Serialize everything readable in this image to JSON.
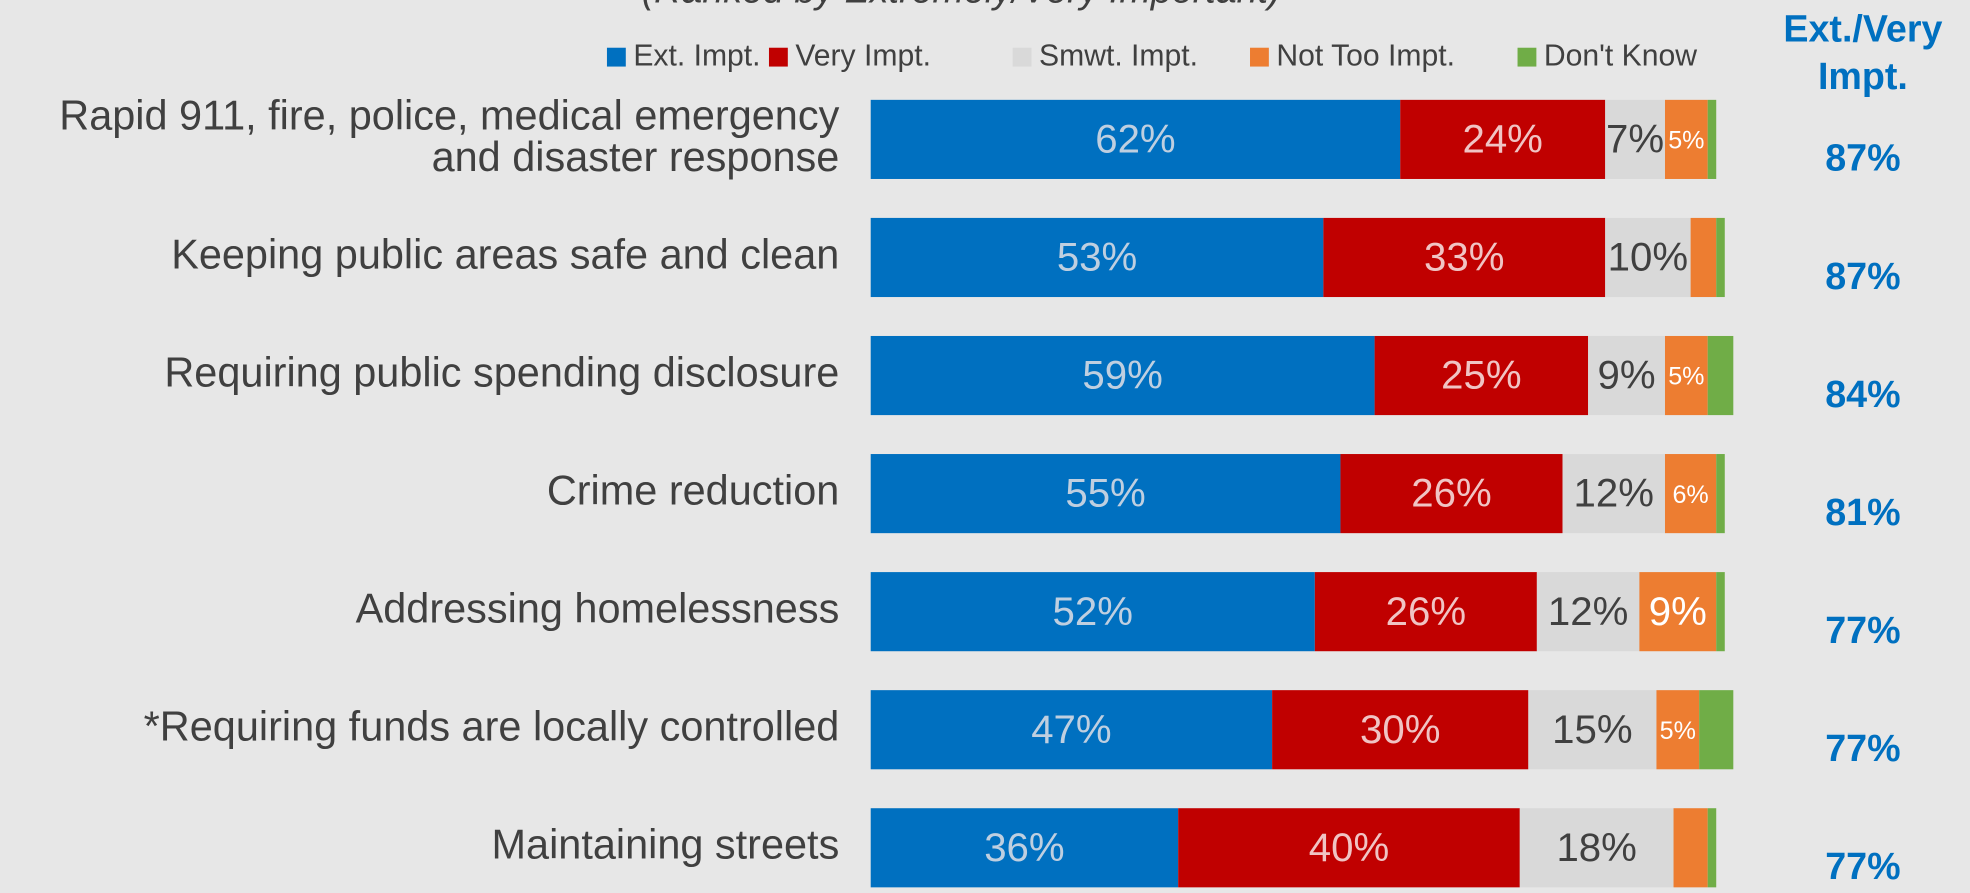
{
  "chart_data": {
    "type": "stacked-bar-horizontal",
    "subtitle": "(Ranked by Extremely/Very Important)",
    "categories": [
      "Rapid 911, fire, police, medical emergency and disaster response",
      "Keeping public areas safe and clean",
      "Requiring public spending disclosure",
      "Crime reduction",
      "Addressing homelessness",
      "*Requiring funds are locally controlled",
      "Maintaining streets"
    ],
    "xlim": [
      0,
      100
    ],
    "legend": "top",
    "series": [
      {
        "name": "Ext. Impt.",
        "color": "#0070c0",
        "values": [
          62,
          53,
          59,
          55,
          52,
          47,
          36
        ],
        "value_labels": [
          "62%",
          "53%",
          "59%",
          "55%",
          "52%",
          "47%",
          "36%"
        ]
      },
      {
        "name": "Very Impt.",
        "color": "#c00000",
        "values": [
          24,
          33,
          25,
          26,
          26,
          30,
          40
        ],
        "value_labels": [
          "24%",
          "33%",
          "25%",
          "26%",
          "26%",
          "30%",
          "40%"
        ]
      },
      {
        "name": "Smwt. Impt.",
        "color": "#d9d9d9",
        "values": [
          7,
          10,
          9,
          12,
          12,
          15,
          18
        ],
        "value_labels": [
          "7%",
          "10%",
          "9%",
          "12%",
          "12%",
          "15%",
          "18%"
        ]
      },
      {
        "name": "Not Too Impt.",
        "color": "#ed7d31",
        "values": [
          5,
          3,
          5,
          6,
          9,
          5,
          4
        ],
        "value_labels": [
          "5%",
          null,
          "5%",
          "6%",
          "9%",
          "5%",
          null
        ]
      },
      {
        "name": "Don't Know",
        "color": "#70ad47",
        "values": [
          1,
          1,
          3,
          1,
          1,
          4,
          1
        ],
        "value_labels": [
          null,
          null,
          null,
          null,
          null,
          null,
          null
        ]
      }
    ],
    "totals": {
      "name": "Ext./Very Impt.",
      "color": "#0070c0",
      "values": [
        87,
        87,
        84,
        81,
        77,
        77,
        77
      ],
      "value_labels": [
        "87%",
        "87%",
        "84%",
        "81%",
        "77%",
        "77%",
        "77%"
      ]
    }
  }
}
